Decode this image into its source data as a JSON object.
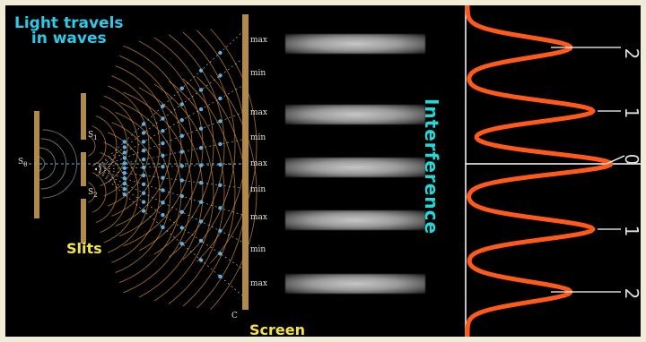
{
  "title_line1": "Light travels",
  "title_line2": "in waves",
  "slits_label": "Slits",
  "screen_label": "Screen",
  "interference_label": "Interference",
  "source_label": "S",
  "source_sub": "0",
  "slit1_label": "S",
  "slit1_sub": "1",
  "slit2_label": "S",
  "slit2_sub": "2",
  "screen_mark": "C",
  "screen_markers": [
    "max",
    "min",
    "max",
    "min",
    "max",
    "min",
    "max",
    "min",
    "max"
  ],
  "order_labels": [
    "2",
    "1",
    "0",
    "1",
    "2"
  ],
  "colors": {
    "background": "#000000",
    "title": "#2ec9e8",
    "label_yellow": "#f3e34a",
    "interference_text": "#22d8d8",
    "intensity_curve": "#ff5a1a",
    "wave_arcs": "#c98a3a",
    "nodes": "#5fb0e0",
    "slit_board": "#b08a4a"
  }
}
